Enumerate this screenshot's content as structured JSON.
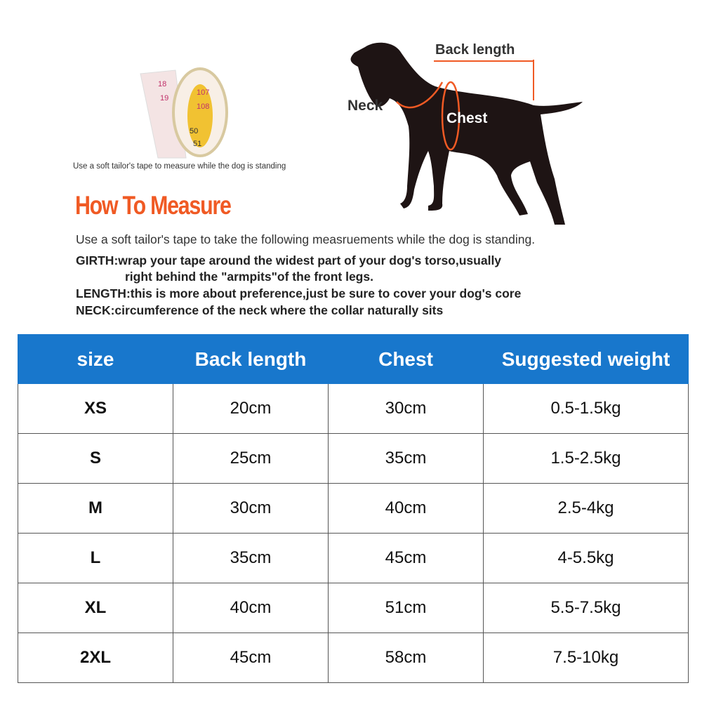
{
  "tape_caption": "Use a soft tailor's tape to measure while the dog is standing",
  "tape_numbers": [
    "18",
    "19",
    "107",
    "108",
    "50",
    "51"
  ],
  "diagram_labels": {
    "back_length": "Back length",
    "neck": "Neck",
    "chest": "Chest"
  },
  "accent_color": "#f05a24",
  "header_color": "#1877cc",
  "title": "How To Measure",
  "intro": "Use a soft tailor's tape to take the following measruements while the dog is standing.",
  "girth_label": "GIRTH:",
  "girth_text": "wrap your tape around the widest part of your dog's torso,usually",
  "girth_text2": "right behind the \"armpits\"of the front legs.",
  "length_label": "LENGTH:",
  "length_text": "this is more about preference,just be sure to cover your dog's core",
  "neck_label": "NECK:",
  "neck_text": "circumference of the neck where the collar naturally sits",
  "table": {
    "headers": [
      "size",
      "Back length",
      "Chest",
      "Suggested weight"
    ],
    "rows": [
      [
        "XS",
        "20cm",
        "30cm",
        "0.5-1.5kg"
      ],
      [
        "S",
        "25cm",
        "35cm",
        "1.5-2.5kg"
      ],
      [
        "M",
        "30cm",
        "40cm",
        "2.5-4kg"
      ],
      [
        "L",
        "35cm",
        "45cm",
        "4-5.5kg"
      ],
      [
        "XL",
        "40cm",
        "51cm",
        "5.5-7.5kg"
      ],
      [
        "2XL",
        "45cm",
        "58cm",
        "7.5-10kg"
      ]
    ]
  }
}
